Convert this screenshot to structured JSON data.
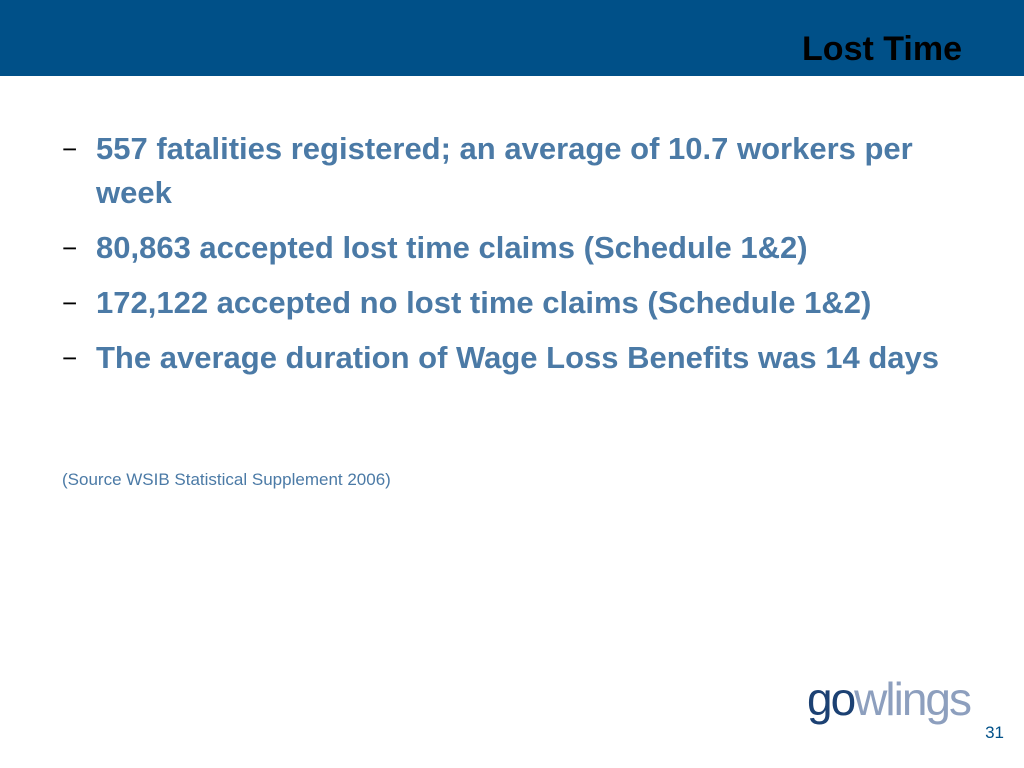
{
  "slide": {
    "title": "Lost Time",
    "bullets": [
      {
        "marker": "−",
        "text": "557 fatalities registered; an average of 10.7 workers per week"
      },
      {
        "marker": "−",
        "text": "80,863 accepted lost time claims (Schedule 1&2)"
      },
      {
        "marker": "−",
        "text": "172,122 accepted no lost time claims (Schedule 1&2)"
      },
      {
        "marker": "−",
        "text": "The average duration of Wage Loss Benefits was 14 days"
      }
    ],
    "source": "(Source WSIB Statistical Supplement 2006)",
    "page_number": "31"
  },
  "logo": {
    "part1": "go",
    "part2": "wlings"
  },
  "colors": {
    "header_bar": "#005088",
    "bullet_text": "#4b7aa6",
    "logo_dark": "#1c4173",
    "logo_light": "#8d9fbe"
  }
}
